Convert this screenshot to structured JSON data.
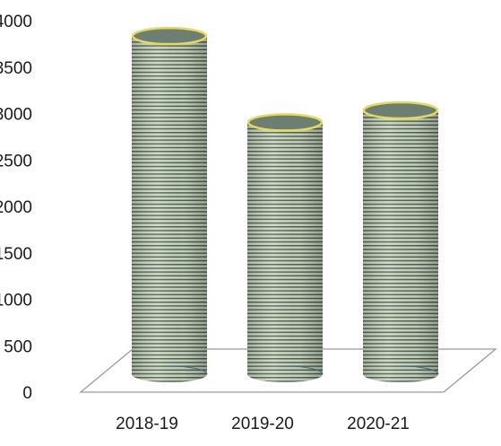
{
  "chart_data": {
    "type": "bar",
    "style": "3d-cylinder",
    "categories": [
      "2018-19",
      "2019-20",
      "2020-21"
    ],
    "values": [
      3950,
      3020,
      3150
    ],
    "ylim": [
      0,
      4000
    ],
    "yticks": [
      0,
      500,
      1000,
      1500,
      2000,
      2500,
      3000,
      3500,
      4000
    ],
    "title": "",
    "xlabel": "",
    "ylabel": "",
    "grid": false,
    "legend": "none",
    "colors": {
      "stripe_light": "#ccd7bf",
      "stripe_dark": "#4f6357",
      "cap_fill": "#6d7f73",
      "cap_rim": "#e7d95a",
      "floor_stroke": "#9a9a9a"
    }
  }
}
